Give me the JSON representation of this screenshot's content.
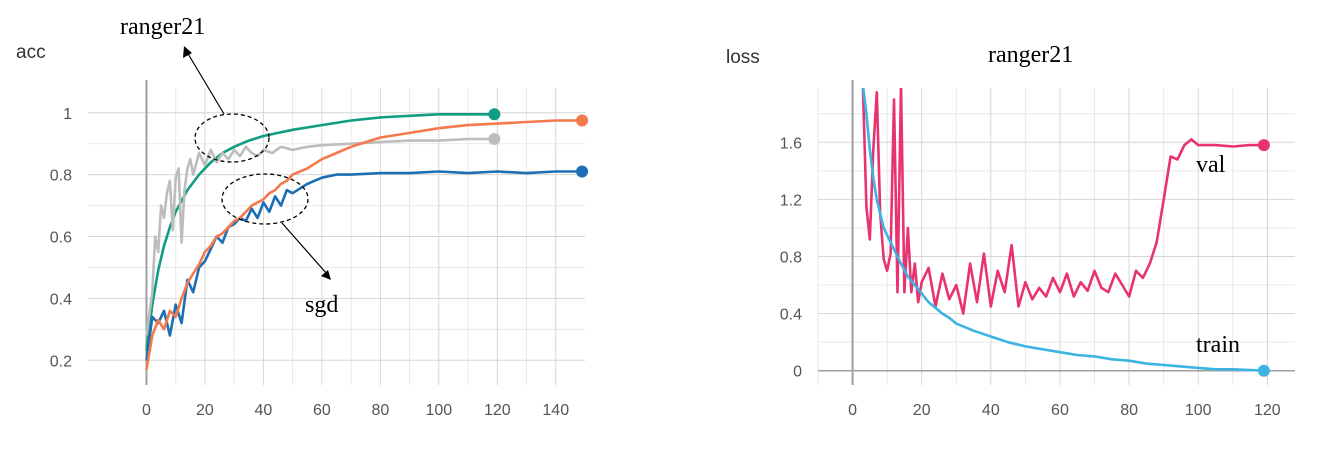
{
  "chart_data": [
    {
      "type": "line",
      "title": "",
      "ylabel": "acc",
      "xlabel": "",
      "xlim": [
        -20,
        150
      ],
      "ylim": [
        0.12,
        1.08
      ],
      "xticks": [
        0,
        20,
        40,
        60,
        80,
        100,
        120,
        140
      ],
      "yticks": [
        0.2,
        0.4,
        0.6,
        0.8,
        1
      ],
      "grid": true,
      "annotations": [
        {
          "text": "ranger21",
          "target": "ranger21 curves (upper group)"
        },
        {
          "text": "sgd",
          "target": "sgd curves (lower group)"
        }
      ],
      "series": [
        {
          "color": "#0f9d84",
          "x": [
            0,
            2,
            4,
            6,
            8,
            10,
            14,
            18,
            22,
            26,
            30,
            35,
            40,
            45,
            50,
            60,
            70,
            80,
            90,
            100,
            110,
            119
          ],
          "values": [
            0.23,
            0.38,
            0.49,
            0.57,
            0.63,
            0.68,
            0.75,
            0.8,
            0.84,
            0.87,
            0.89,
            0.91,
            0.925,
            0.935,
            0.945,
            0.96,
            0.975,
            0.985,
            0.99,
            0.995,
            0.995,
            0.995
          ]
        },
        {
          "color": "#bdbdbd",
          "x": [
            0,
            2,
            3,
            4,
            5,
            6,
            7,
            8,
            9,
            10,
            11,
            12,
            13,
            14,
            15,
            16,
            18,
            20,
            22,
            24,
            26,
            28,
            30,
            32,
            34,
            36,
            38,
            40,
            43,
            46,
            50,
            55,
            60,
            70,
            80,
            90,
            100,
            110,
            119
          ],
          "values": [
            0.28,
            0.42,
            0.6,
            0.55,
            0.7,
            0.66,
            0.74,
            0.78,
            0.62,
            0.79,
            0.82,
            0.58,
            0.75,
            0.82,
            0.85,
            0.8,
            0.87,
            0.83,
            0.88,
            0.84,
            0.87,
            0.85,
            0.88,
            0.86,
            0.89,
            0.87,
            0.86,
            0.88,
            0.87,
            0.89,
            0.88,
            0.89,
            0.895,
            0.9,
            0.905,
            0.91,
            0.91,
            0.915,
            0.915
          ]
        },
        {
          "color": "#1c6fb5",
          "x": [
            0,
            2,
            4,
            6,
            8,
            10,
            12,
            14,
            16,
            18,
            20,
            22,
            24,
            26,
            28,
            30,
            32,
            34,
            36,
            38,
            40,
            42,
            44,
            46,
            48,
            50,
            55,
            60,
            65,
            70,
            80,
            90,
            100,
            110,
            120,
            130,
            140,
            149
          ],
          "values": [
            0.2,
            0.34,
            0.32,
            0.36,
            0.28,
            0.38,
            0.32,
            0.46,
            0.42,
            0.5,
            0.52,
            0.56,
            0.6,
            0.58,
            0.63,
            0.64,
            0.66,
            0.65,
            0.69,
            0.66,
            0.71,
            0.68,
            0.73,
            0.7,
            0.75,
            0.74,
            0.77,
            0.79,
            0.8,
            0.8,
            0.805,
            0.805,
            0.81,
            0.805,
            0.81,
            0.805,
            0.81,
            0.81
          ]
        },
        {
          "color": "#f47a4e",
          "x": [
            0,
            2,
            4,
            6,
            8,
            10,
            12,
            14,
            16,
            18,
            20,
            22,
            24,
            26,
            28,
            30,
            32,
            34,
            36,
            38,
            40,
            42,
            44,
            46,
            48,
            50,
            55,
            60,
            65,
            70,
            75,
            80,
            90,
            100,
            110,
            120,
            130,
            140,
            149
          ],
          "values": [
            0.17,
            0.28,
            0.33,
            0.3,
            0.36,
            0.34,
            0.4,
            0.45,
            0.48,
            0.51,
            0.55,
            0.57,
            0.6,
            0.61,
            0.63,
            0.65,
            0.66,
            0.68,
            0.7,
            0.71,
            0.72,
            0.74,
            0.75,
            0.77,
            0.78,
            0.8,
            0.82,
            0.85,
            0.87,
            0.89,
            0.905,
            0.92,
            0.935,
            0.95,
            0.96,
            0.965,
            0.97,
            0.975,
            0.975
          ]
        }
      ]
    },
    {
      "type": "line",
      "title": "ranger21",
      "ylabel": "loss",
      "xlabel": "",
      "xlim": [
        -10,
        128
      ],
      "ylim": [
        -0.1,
        1.98
      ],
      "xticks": [
        0,
        20,
        40,
        60,
        80,
        100,
        120
      ],
      "yticks": [
        0,
        0.4,
        0.8,
        1.2,
        1.6
      ],
      "grid": true,
      "series": [
        {
          "name": "val",
          "color": "#e8336e",
          "x": [
            3,
            4,
            5,
            6,
            7,
            8,
            9,
            10,
            11,
            12,
            13,
            14,
            15,
            16,
            17,
            18,
            19,
            20,
            22,
            24,
            26,
            28,
            30,
            32,
            34,
            36,
            38,
            40,
            42,
            44,
            46,
            48,
            50,
            52,
            54,
            56,
            58,
            60,
            62,
            64,
            66,
            68,
            70,
            72,
            74,
            76,
            78,
            80,
            82,
            84,
            86,
            88,
            90,
            92,
            94,
            96,
            98,
            100,
            105,
            110,
            115,
            119
          ],
          "values": [
            2.0,
            1.15,
            0.92,
            1.55,
            1.95,
            1.1,
            0.78,
            0.7,
            0.82,
            1.9,
            0.55,
            2.0,
            0.55,
            1.0,
            0.55,
            0.75,
            0.48,
            0.62,
            0.72,
            0.45,
            0.68,
            0.5,
            0.6,
            0.4,
            0.75,
            0.48,
            0.82,
            0.45,
            0.7,
            0.55,
            0.88,
            0.45,
            0.62,
            0.5,
            0.58,
            0.52,
            0.65,
            0.55,
            0.68,
            0.52,
            0.62,
            0.56,
            0.7,
            0.58,
            0.55,
            0.68,
            0.6,
            0.52,
            0.7,
            0.65,
            0.75,
            0.9,
            1.2,
            1.5,
            1.48,
            1.58,
            1.62,
            1.58,
            1.58,
            1.57,
            1.58,
            1.58
          ]
        },
        {
          "name": "train",
          "color": "#3bb4e3",
          "x": [
            3,
            4,
            5,
            6,
            7,
            8,
            9,
            10,
            12,
            14,
            16,
            18,
            20,
            22,
            24,
            26,
            28,
            30,
            35,
            40,
            45,
            50,
            55,
            60,
            65,
            70,
            75,
            80,
            85,
            90,
            95,
            100,
            105,
            110,
            115,
            119
          ],
          "values": [
            2.0,
            1.8,
            1.55,
            1.35,
            1.2,
            1.1,
            1.0,
            0.95,
            0.85,
            0.75,
            0.66,
            0.6,
            0.54,
            0.48,
            0.44,
            0.4,
            0.37,
            0.33,
            0.28,
            0.24,
            0.2,
            0.17,
            0.15,
            0.13,
            0.11,
            0.1,
            0.08,
            0.07,
            0.05,
            0.04,
            0.03,
            0.02,
            0.01,
            0.01,
            0.005,
            0.0
          ]
        }
      ],
      "annotations": [
        {
          "text": "val",
          "target": "val series"
        },
        {
          "text": "train",
          "target": "train series"
        }
      ]
    }
  ]
}
